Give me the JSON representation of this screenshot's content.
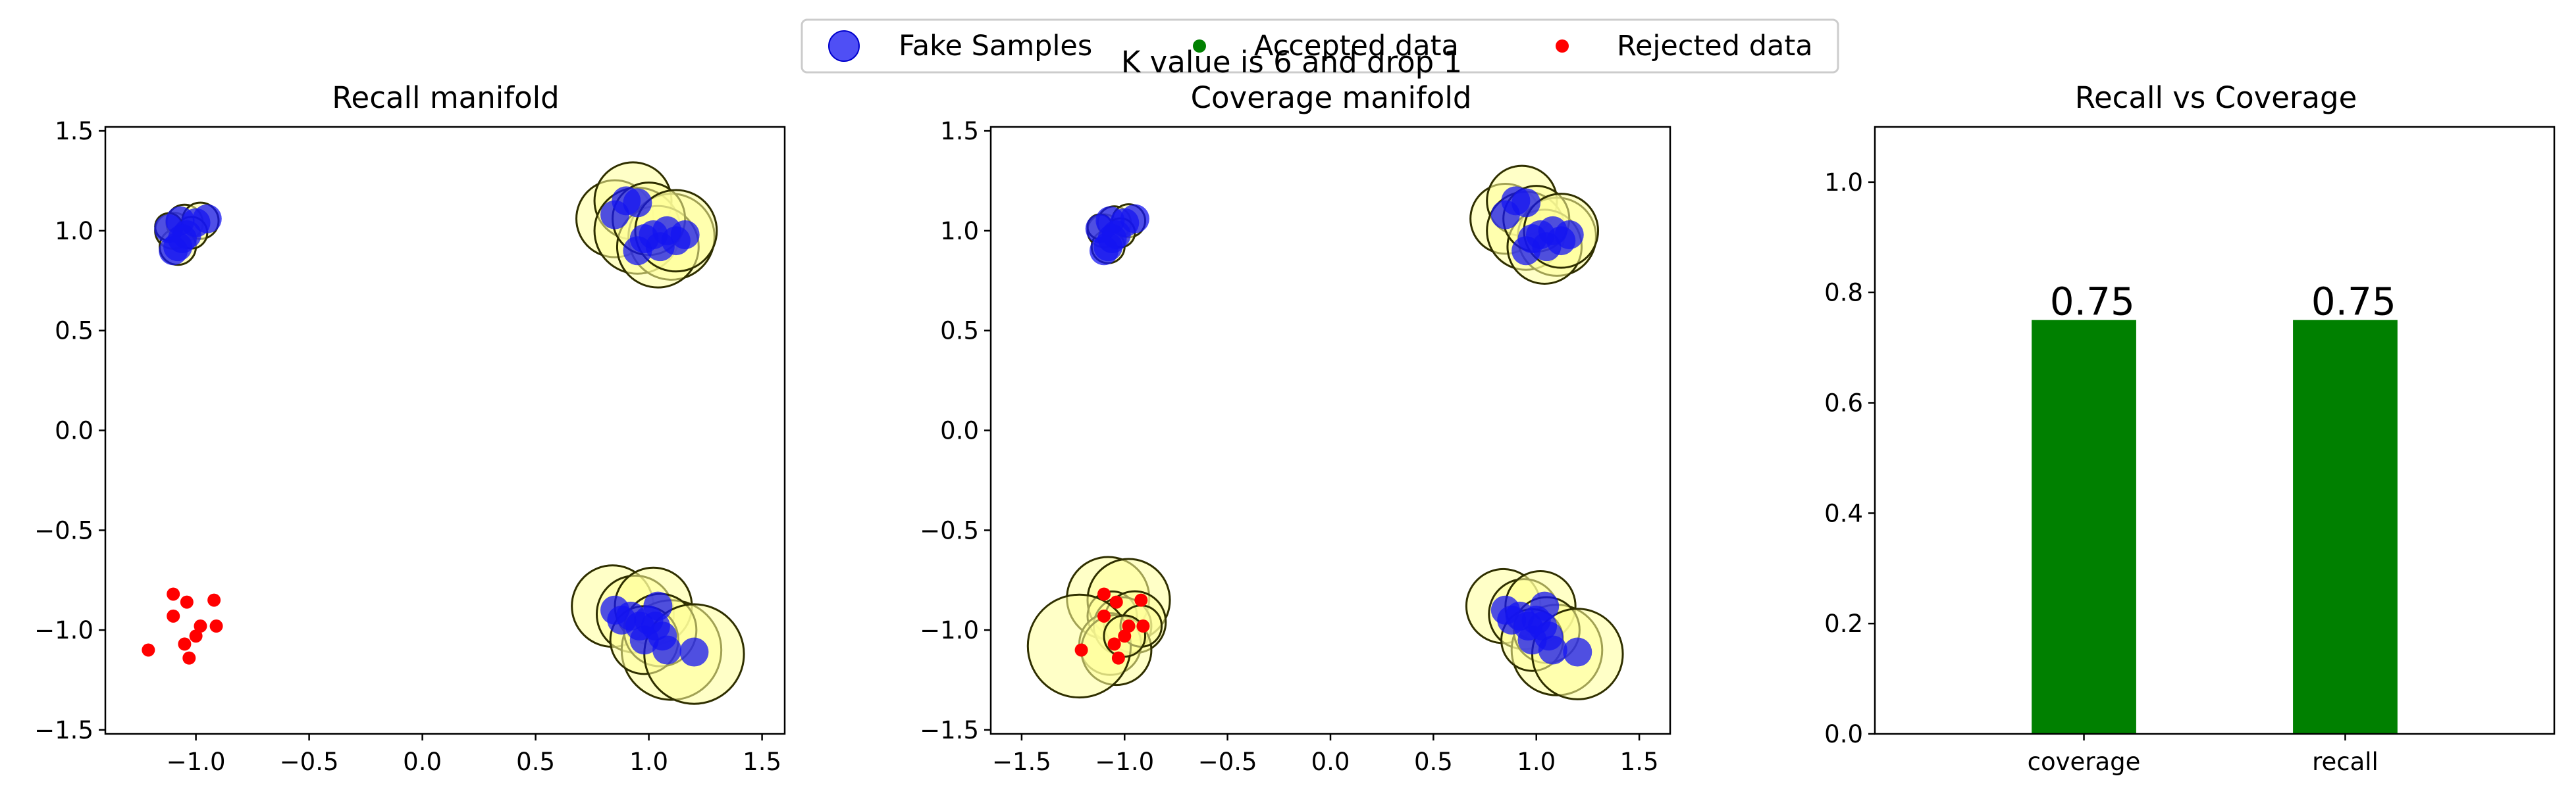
{
  "figure": {
    "suptitle": "K value is 6 and drop 1",
    "legend": [
      {
        "label": "Fake Samples",
        "marker": "large-circle",
        "color": "#0000ff"
      },
      {
        "label": "Accepted data",
        "marker": "small-dot",
        "color": "#008000"
      },
      {
        "label": "Rejected data",
        "marker": "small-dot",
        "color": "#ff0000"
      }
    ],
    "legend_position": "top-center"
  },
  "colors": {
    "fake": "#1414f2",
    "ball_fill": "#ffff99",
    "ball_edge": "#2f2f00",
    "rejected": "#ff0000",
    "accepted": "#008000",
    "bar": "#008000"
  },
  "chart_data": [
    {
      "type": "scatter",
      "title": "Recall manifold",
      "xlim": [
        -1.4,
        1.6
      ],
      "ylim": [
        -1.52,
        1.52
      ],
      "xticks": [
        -1.0,
        -0.5,
        0.0,
        0.5,
        1.0,
        1.5
      ],
      "xtick_labels": [
        "−1.0",
        "−0.5",
        "0.0",
        "0.5",
        "1.0",
        "1.5"
      ],
      "yticks": [
        -1.5,
        -1.0,
        -0.5,
        0.0,
        0.5,
        1.0,
        1.5
      ],
      "ytick_labels": [
        "−1.5",
        "−1.0",
        "−0.5",
        "0.0",
        "0.5",
        "1.0",
        "1.5"
      ],
      "balls": [
        {
          "x": -1.1,
          "y": 1.0,
          "r": 0.08
        },
        {
          "x": -1.05,
          "y": 1.04,
          "r": 0.08
        },
        {
          "x": -0.98,
          "y": 1.05,
          "r": 0.08
        },
        {
          "x": -1.08,
          "y": 0.92,
          "r": 0.08
        },
        {
          "x": -1.02,
          "y": 0.99,
          "r": 0.07
        },
        {
          "x": -1.12,
          "y": 1.02,
          "r": 0.06
        },
        {
          "x": 0.85,
          "y": 1.06,
          "r": 0.17
        },
        {
          "x": 0.93,
          "y": 1.15,
          "r": 0.17
        },
        {
          "x": 0.95,
          "y": 1.0,
          "r": 0.19
        },
        {
          "x": 1.1,
          "y": 0.97,
          "r": 0.19
        },
        {
          "x": 1.04,
          "y": 0.92,
          "r": 0.18
        },
        {
          "x": 1.0,
          "y": 1.06,
          "r": 0.16
        },
        {
          "x": 1.12,
          "y": 1.0,
          "r": 0.18
        },
        {
          "x": 0.84,
          "y": -0.88,
          "r": 0.18
        },
        {
          "x": 0.94,
          "y": -0.92,
          "r": 0.17
        },
        {
          "x": 1.02,
          "y": -0.88,
          "r": 0.17
        },
        {
          "x": 1.1,
          "y": -1.1,
          "r": 0.22
        },
        {
          "x": 1.05,
          "y": -1.0,
          "r": 0.16
        },
        {
          "x": 0.98,
          "y": -1.05,
          "r": 0.15
        },
        {
          "x": 1.2,
          "y": -1.12,
          "r": 0.22
        }
      ],
      "fake": [
        [
          -1.12,
          1.01
        ],
        [
          -1.07,
          1.05
        ],
        [
          -1.04,
          0.98
        ],
        [
          -1.08,
          0.92
        ],
        [
          -1.0,
          1.04
        ],
        [
          -0.95,
          1.06
        ],
        [
          -1.06,
          0.96
        ],
        [
          -1.1,
          0.9
        ],
        [
          0.85,
          1.08
        ],
        [
          0.9,
          1.15
        ],
        [
          0.95,
          1.14
        ],
        [
          0.98,
          0.96
        ],
        [
          1.02,
          0.98
        ],
        [
          1.05,
          0.92
        ],
        [
          1.08,
          1.0
        ],
        [
          1.12,
          0.95
        ],
        [
          1.16,
          0.98
        ],
        [
          0.95,
          0.9
        ],
        [
          0.85,
          -0.9
        ],
        [
          0.88,
          -0.95
        ],
        [
          0.92,
          -0.93
        ],
        [
          0.96,
          -0.98
        ],
        [
          1.0,
          -0.95
        ],
        [
          1.03,
          -0.98
        ],
        [
          1.04,
          -0.88
        ],
        [
          1.06,
          -1.03
        ],
        [
          0.98,
          -1.05
        ],
        [
          1.08,
          -1.1
        ],
        [
          1.2,
          -1.11
        ]
      ],
      "rejected": [
        [
          -1.1,
          -0.82
        ],
        [
          -1.04,
          -0.86
        ],
        [
          -0.92,
          -0.85
        ],
        [
          -1.1,
          -0.93
        ],
        [
          -0.98,
          -0.98
        ],
        [
          -0.91,
          -0.98
        ],
        [
          -1.0,
          -1.03
        ],
        [
          -1.05,
          -1.07
        ],
        [
          -1.03,
          -1.14
        ],
        [
          -1.21,
          -1.1
        ]
      ],
      "accepted": []
    },
    {
      "type": "scatter",
      "title": "Coverage manifold",
      "xlim": [
        -1.65,
        1.65
      ],
      "ylim": [
        -1.52,
        1.52
      ],
      "xticks": [
        -1.5,
        -1.0,
        -0.5,
        0.0,
        0.5,
        1.0,
        1.5
      ],
      "xtick_labels": [
        "−1.5",
        "−1.0",
        "−0.5",
        "0.0",
        "0.5",
        "1.0",
        "1.5"
      ],
      "yticks": [
        -1.5,
        -1.0,
        -0.5,
        0.0,
        0.5,
        1.0,
        1.5
      ],
      "ytick_labels": [
        "−1.5",
        "−1.0",
        "−0.5",
        "0.0",
        "0.5",
        "1.0",
        "1.5"
      ],
      "balls": [
        {
          "x": -1.1,
          "y": 1.0,
          "r": 0.08
        },
        {
          "x": -1.05,
          "y": 1.04,
          "r": 0.08
        },
        {
          "x": -0.98,
          "y": 1.05,
          "r": 0.08
        },
        {
          "x": -1.08,
          "y": 0.92,
          "r": 0.08
        },
        {
          "x": -1.02,
          "y": 0.99,
          "r": 0.07
        },
        {
          "x": -1.12,
          "y": 1.02,
          "r": 0.06
        },
        {
          "x": 0.85,
          "y": 1.06,
          "r": 0.17
        },
        {
          "x": 0.93,
          "y": 1.15,
          "r": 0.17
        },
        {
          "x": 0.95,
          "y": 1.0,
          "r": 0.19
        },
        {
          "x": 1.1,
          "y": 0.97,
          "r": 0.19
        },
        {
          "x": 1.04,
          "y": 0.92,
          "r": 0.18
        },
        {
          "x": 1.0,
          "y": 1.06,
          "r": 0.16
        },
        {
          "x": 1.12,
          "y": 1.0,
          "r": 0.18
        },
        {
          "x": 0.84,
          "y": -0.88,
          "r": 0.18
        },
        {
          "x": 0.94,
          "y": -0.92,
          "r": 0.17
        },
        {
          "x": 1.02,
          "y": -0.88,
          "r": 0.17
        },
        {
          "x": 1.1,
          "y": -1.1,
          "r": 0.22
        },
        {
          "x": 1.05,
          "y": -1.0,
          "r": 0.16
        },
        {
          "x": 0.98,
          "y": -1.05,
          "r": 0.15
        },
        {
          "x": 1.2,
          "y": -1.12,
          "r": 0.22
        },
        {
          "x": -1.08,
          "y": -0.84,
          "r": 0.2
        },
        {
          "x": -0.98,
          "y": -0.85,
          "r": 0.2
        },
        {
          "x": -1.06,
          "y": -0.93,
          "r": 0.12
        },
        {
          "x": -1.01,
          "y": -0.98,
          "r": 0.14
        },
        {
          "x": -0.95,
          "y": -0.96,
          "r": 0.15
        },
        {
          "x": -1.07,
          "y": -1.07,
          "r": 0.15
        },
        {
          "x": -1.04,
          "y": -1.1,
          "r": 0.17
        },
        {
          "x": -1.22,
          "y": -1.08,
          "r": 0.25
        },
        {
          "x": -0.92,
          "y": -0.98,
          "r": 0.1
        },
        {
          "x": -1.0,
          "y": -1.03,
          "r": 0.1
        }
      ],
      "fake": [
        [
          -1.12,
          1.01
        ],
        [
          -1.07,
          1.05
        ],
        [
          -1.04,
          0.98
        ],
        [
          -1.08,
          0.92
        ],
        [
          -1.0,
          1.04
        ],
        [
          -0.95,
          1.06
        ],
        [
          -1.06,
          0.96
        ],
        [
          -1.1,
          0.9
        ],
        [
          0.85,
          1.08
        ],
        [
          0.9,
          1.15
        ],
        [
          0.95,
          1.14
        ],
        [
          0.98,
          0.96
        ],
        [
          1.02,
          0.98
        ],
        [
          1.05,
          0.92
        ],
        [
          1.08,
          1.0
        ],
        [
          1.12,
          0.95
        ],
        [
          1.16,
          0.98
        ],
        [
          0.95,
          0.9
        ],
        [
          0.85,
          -0.9
        ],
        [
          0.88,
          -0.95
        ],
        [
          0.92,
          -0.93
        ],
        [
          0.96,
          -0.98
        ],
        [
          1.0,
          -0.95
        ],
        [
          1.03,
          -0.98
        ],
        [
          1.04,
          -0.88
        ],
        [
          1.06,
          -1.03
        ],
        [
          0.98,
          -1.05
        ],
        [
          1.08,
          -1.1
        ],
        [
          1.2,
          -1.11
        ]
      ],
      "rejected": [
        [
          -1.1,
          -0.82
        ],
        [
          -1.04,
          -0.86
        ],
        [
          -0.92,
          -0.85
        ],
        [
          -1.1,
          -0.93
        ],
        [
          -0.98,
          -0.98
        ],
        [
          -0.91,
          -0.98
        ],
        [
          -1.0,
          -1.03
        ],
        [
          -1.05,
          -1.07
        ],
        [
          -1.03,
          -1.14
        ],
        [
          -1.21,
          -1.1
        ]
      ],
      "accepted": []
    },
    {
      "type": "bar",
      "title": "Recall vs Coverage",
      "categories": [
        "coverage",
        "recall"
      ],
      "values": [
        0.75,
        0.75
      ],
      "value_labels": [
        "0.75",
        "0.75"
      ],
      "ylim": [
        0.0,
        1.1
      ],
      "yticks": [
        0.0,
        0.2,
        0.4,
        0.6,
        0.8,
        1.0
      ],
      "ytick_labels": [
        "0.0",
        "0.2",
        "0.4",
        "0.6",
        "0.8",
        "1.0"
      ]
    }
  ]
}
